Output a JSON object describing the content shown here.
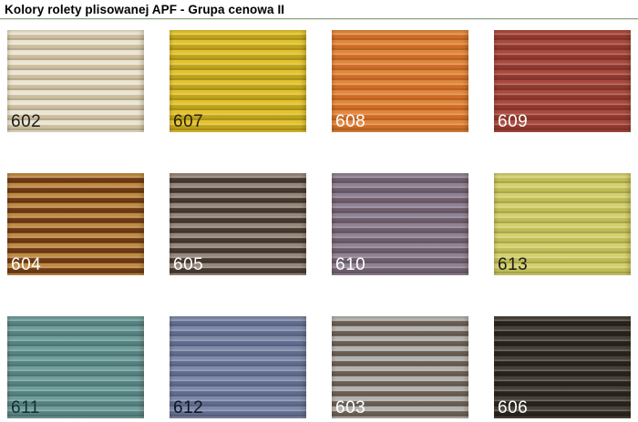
{
  "page": {
    "title": "Kolory rolety plisowanej APF - Grupa cenowa II",
    "background_color": "#ffffff",
    "divider_color": "#8e9e88"
  },
  "grid": {
    "columns": 4,
    "rows": 3
  },
  "swatches": [
    {
      "code": "602",
      "light": "#ebe4d2",
      "dark": "#ccbe9d",
      "label_color": "#1c1c1c"
    },
    {
      "code": "607",
      "light": "#e3c32d",
      "dark": "#bda21c",
      "label_color": "#2a2208"
    },
    {
      "code": "608",
      "light": "#e0873c",
      "dark": "#cf6c26",
      "label_color": "#ffffff"
    },
    {
      "code": "609",
      "light": "#a94a3e",
      "dark": "#90382e",
      "label_color": "#ffffff"
    },
    {
      "code": "604",
      "light": "#c08b42",
      "dark": "#6e3a15",
      "label_color": "#ffffff"
    },
    {
      "code": "605",
      "light": "#96877b",
      "dark": "#453930",
      "label_color": "#ffffff"
    },
    {
      "code": "610",
      "light": "#8f8295",
      "dark": "#6f5d6b",
      "label_color": "#ffffff"
    },
    {
      "code": "613",
      "light": "#d3d06f",
      "dark": "#bfbc55",
      "label_color": "#1c1c1c"
    },
    {
      "code": "611",
      "light": "#6f9e9b",
      "dark": "#558281",
      "label_color": "#143030"
    },
    {
      "code": "612",
      "light": "#7e89a8",
      "dark": "#5f6c8f",
      "label_color": "#10141f"
    },
    {
      "code": "603",
      "light": "#b2b1ad",
      "dark": "#6a5e53",
      "label_color": "#ffffff"
    },
    {
      "code": "606",
      "light": "#46413a",
      "dark": "#28221c",
      "label_color": "#ffffff"
    }
  ]
}
